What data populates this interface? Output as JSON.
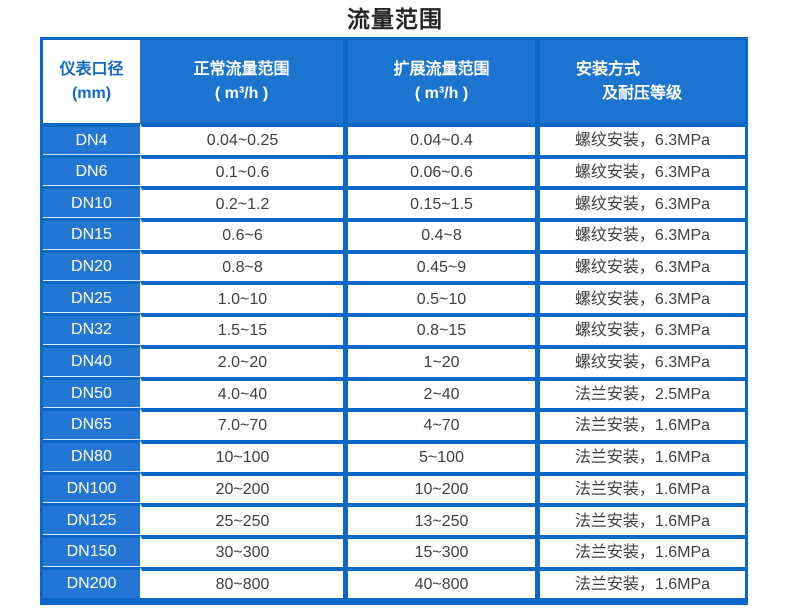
{
  "title": "流量范围",
  "colors": {
    "border_blue": "#0c68c6",
    "header_blue": "#1c74d1",
    "label_blue": "#2376d3",
    "header_col1_text": "#1467c8",
    "data_text": "#3f3f3f",
    "title_text": "#262626"
  },
  "chart_data": {
    "type": "table",
    "title": "流量范围",
    "headers": {
      "col1": {
        "line1": "仪表口径",
        "line2": "(mm)"
      },
      "col2": {
        "line1": "正常流量范围",
        "line2": "( m³/h )"
      },
      "col3": {
        "line1": "扩展流量范围",
        "line2": "( m³/h )"
      },
      "col4": {
        "line1": "安装方式",
        "line2": "及耐压等级"
      }
    },
    "rows": [
      {
        "dn": "DN4",
        "normal": "0.04~0.25",
        "extended": "0.04~0.4",
        "install": "螺纹安装，6.3MPa"
      },
      {
        "dn": "DN6",
        "normal": "0.1~0.6",
        "extended": "0.06~0.6",
        "install": "螺纹安装，6.3MPa"
      },
      {
        "dn": "DN10",
        "normal": "0.2~1.2",
        "extended": "0.15~1.5",
        "install": "螺纹安装，6.3MPa"
      },
      {
        "dn": "DN15",
        "normal": "0.6~6",
        "extended": "0.4~8",
        "install": "螺纹安装，6.3MPa"
      },
      {
        "dn": "DN20",
        "normal": "0.8~8",
        "extended": "0.45~9",
        "install": "螺纹安装，6.3MPa"
      },
      {
        "dn": "DN25",
        "normal": "1.0~10",
        "extended": "0.5~10",
        "install": "螺纹安装，6.3MPa"
      },
      {
        "dn": "DN32",
        "normal": "1.5~15",
        "extended": "0.8~15",
        "install": "螺纹安装，6.3MPa"
      },
      {
        "dn": "DN40",
        "normal": "2.0~20",
        "extended": "1~20",
        "install": "螺纹安装，6.3MPa"
      },
      {
        "dn": "DN50",
        "normal": "4.0~40",
        "extended": "2~40",
        "install": "法兰安装，2.5MPa"
      },
      {
        "dn": "DN65",
        "normal": "7.0~70",
        "extended": "4~70",
        "install": "法兰安装，1.6MPa"
      },
      {
        "dn": "DN80",
        "normal": "10~100",
        "extended": "5~100",
        "install": "法兰安装，1.6MPa"
      },
      {
        "dn": "DN100",
        "normal": "20~200",
        "extended": "10~200",
        "install": "法兰安装，1.6MPa"
      },
      {
        "dn": "DN125",
        "normal": "25~250",
        "extended": "13~250",
        "install": "法兰安装，1.6MPa"
      },
      {
        "dn": "DN150",
        "normal": "30~300",
        "extended": "15~300",
        "install": "法兰安装，1.6MPa"
      },
      {
        "dn": "DN200",
        "normal": "80~800",
        "extended": "40~800",
        "install": "法兰安装，1.6MPa"
      }
    ]
  }
}
